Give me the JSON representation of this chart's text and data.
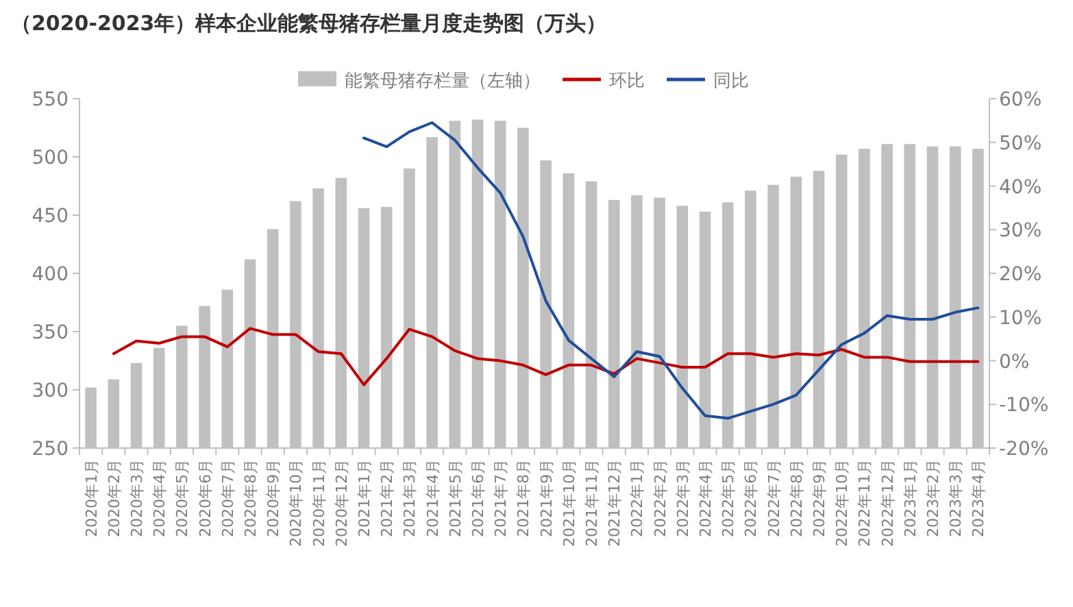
{
  "chart_data": {
    "type": "bar",
    "title": "（2020-2023年）样本企业能繁母猪存栏量月度走势图（万头）",
    "categories": [
      "2020年1月",
      "2020年2月",
      "2020年3月",
      "2020年4月",
      "2020年5月",
      "2020年6月",
      "2020年7月",
      "2020年8月",
      "2020年9月",
      "2020年10月",
      "2020年11月",
      "2020年12月",
      "2021年1月",
      "2021年2月",
      "2021年3月",
      "2021年4月",
      "2021年5月",
      "2021年6月",
      "2021年7月",
      "2021年8月",
      "2021年9月",
      "2021年10月",
      "2021年11月",
      "2021年12月",
      "2022年1月",
      "2022年2月",
      "2022年3月",
      "2022年4月",
      "2022年5月",
      "2022年6月",
      "2022年7月",
      "2022年8月",
      "2022年9月",
      "2022年10月",
      "2022年11月",
      "2022年12月",
      "2023年1月",
      "2023年2月",
      "2023年3月",
      "2023年4月"
    ],
    "series": [
      {
        "name": "能繁母猪存栏量（左轴）",
        "color": "#c0c0c0",
        "values": [
          302,
          309,
          323,
          336,
          355,
          372,
          386,
          412,
          438,
          462,
          473,
          482,
          456,
          457,
          490,
          517,
          531,
          532,
          531,
          525,
          497,
          486,
          479,
          463,
          467,
          465,
          458,
          453,
          461,
          471,
          476,
          483,
          488,
          502,
          507,
          511,
          511,
          509,
          509,
          507
        ]
      },
      {
        "name": "环比",
        "type": "line",
        "axis": "y2",
        "color": "#c00000",
        "values": [
          null,
          1.6,
          4.5,
          4.0,
          5.5,
          5.5,
          3.2,
          7.4,
          6.0,
          6.0,
          2.1,
          1.6,
          -5.5,
          0.5,
          7.2,
          5.5,
          2.3,
          0.5,
          0.0,
          -1.0,
          -3.2,
          -1.0,
          -1.0,
          -3.0,
          0.5,
          -0.5,
          -1.5,
          -1.5,
          1.6,
          1.6,
          0.8,
          1.6,
          1.3,
          2.6,
          0.8,
          0.8,
          -0.2,
          -0.2,
          -0.2,
          -0.2
        ]
      },
      {
        "name": "同比",
        "type": "line",
        "axis": "y2",
        "color": "#1f4e9a",
        "values": [
          null,
          null,
          null,
          null,
          null,
          null,
          null,
          null,
          null,
          null,
          null,
          null,
          51.0,
          49.0,
          52.4,
          54.5,
          50.5,
          44.2,
          38.4,
          28.4,
          13.7,
          4.7,
          0.5,
          -3.7,
          2.1,
          1.0,
          -6.3,
          -12.6,
          -13.2,
          -11.6,
          -10.0,
          -7.9,
          -2.1,
          3.7,
          6.3,
          10.3,
          9.5,
          9.5,
          11.1,
          12.1
        ]
      }
    ],
    "ylim": [
      250,
      550
    ],
    "yticks": [
      250,
      300,
      350,
      400,
      450,
      500,
      550
    ],
    "y2lim": [
      -20,
      60
    ],
    "y2ticks": [
      {
        "value": -20,
        "label": "-20%"
      },
      {
        "value": -10,
        "label": "-10%"
      },
      {
        "value": 0,
        "label": "0%"
      },
      {
        "value": 10,
        "label": "10%"
      },
      {
        "value": 20,
        "label": "20%"
      },
      {
        "value": 30,
        "label": "30%"
      },
      {
        "value": 40,
        "label": "40%"
      },
      {
        "value": 50,
        "label": "50%"
      },
      {
        "value": 60,
        "label": "60%"
      }
    ],
    "legend": "top",
    "grid": false
  }
}
